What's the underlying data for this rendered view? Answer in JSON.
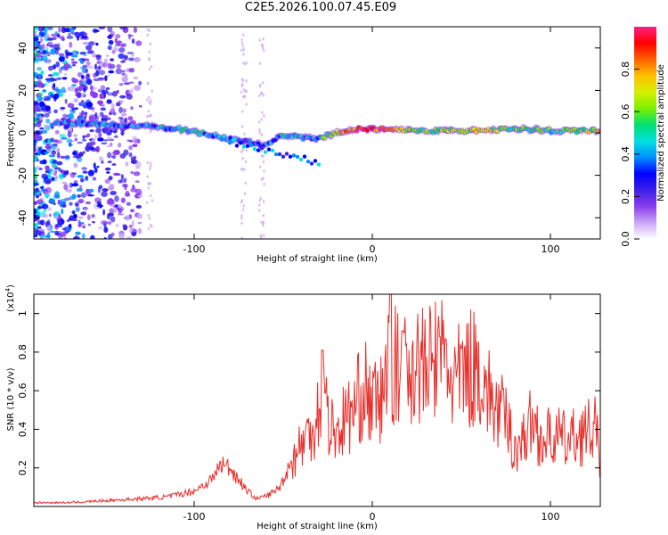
{
  "title": "C2E5.2026.100.07.45.E09",
  "chart_data": [
    {
      "type": "heatmap",
      "xlabel": "Height of straight line (km)",
      "ylabel": "Frequency (Hz)",
      "xlim": [
        -190,
        128
      ],
      "ylim": [
        -50,
        50
      ],
      "xticks": [
        -100,
        0,
        100
      ],
      "yticks": [
        -40,
        -20,
        0,
        20,
        40
      ],
      "colorbar": {
        "label": "Normalized spectral amplitude",
        "range": [
          0,
          1
        ],
        "ticks": [
          "0.0",
          "0.2",
          "0.4",
          "0.6",
          "0.8"
        ],
        "colors": [
          "#ffffff",
          "#c9a6f5",
          "#8b3cf0",
          "#3a20e8",
          "#0000ff",
          "#0090ff",
          "#00e0e0",
          "#00e070",
          "#7cf000",
          "#d8f000",
          "#ffc000",
          "#ff6000",
          "#ff0000",
          "#ff2080"
        ]
      },
      "ridge": {
        "x": [
          -175,
          -150,
          -125,
          -110,
          -95,
          -80,
          -70,
          -60,
          -50,
          -40,
          -32,
          -25,
          -15,
          -5,
          10,
          30,
          60,
          85,
          100,
          128
        ],
        "freq": [
          5,
          4,
          3,
          2,
          0,
          -3,
          -4,
          -6,
          -1,
          -2,
          -3,
          -1,
          1,
          2,
          2,
          1,
          1,
          2,
          1,
          1
        ],
        "amplitude": [
          0.35,
          0.4,
          0.4,
          0.45,
          0.4,
          0.4,
          0.35,
          0.35,
          0.45,
          0.4,
          0.35,
          0.55,
          0.8,
          0.95,
          0.85,
          0.55,
          0.7,
          0.55,
          0.5,
          0.7
        ]
      }
    },
    {
      "type": "line",
      "xlabel": "Height of straight line (km)",
      "ylabel": "SNR (10 * v/v)",
      "y_multiplier": "(x10",
      "y_multiplier_exp": "4",
      "xlim": [
        -190,
        128
      ],
      "ylim": [
        0,
        1.1
      ],
      "xticks": [
        -100,
        0,
        100
      ],
      "yticks": [
        0.2,
        0.4,
        0.6,
        0.8,
        1
      ],
      "series": [
        {
          "name": "SNR",
          "color": "#e8302c",
          "x": [
            -190,
            -170,
            -150,
            -130,
            -115,
            -100,
            -90,
            -85,
            -80,
            -75,
            -70,
            -65,
            -58,
            -52,
            -46,
            -40,
            -35,
            -30,
            -27,
            -24,
            -20,
            -15,
            -10,
            -5,
            0,
            5,
            10,
            15,
            20,
            25,
            30,
            35,
            40,
            45,
            50,
            55,
            60,
            65,
            70,
            75,
            80,
            85,
            90,
            95,
            100,
            105,
            110,
            115,
            120,
            125,
            128
          ],
          "y": [
            0.02,
            0.02,
            0.03,
            0.04,
            0.05,
            0.08,
            0.14,
            0.22,
            0.2,
            0.14,
            0.08,
            0.04,
            0.06,
            0.1,
            0.22,
            0.32,
            0.38,
            0.5,
            0.58,
            0.42,
            0.38,
            0.46,
            0.5,
            0.62,
            0.52,
            0.55,
            0.78,
            0.68,
            0.72,
            0.75,
            0.7,
            0.76,
            0.78,
            0.65,
            0.66,
            0.72,
            0.72,
            0.58,
            0.5,
            0.45,
            0.3,
            0.35,
            0.45,
            0.34,
            0.36,
            0.36,
            0.33,
            0.37,
            0.38,
            0.4,
            0.25
          ],
          "spikes": [
            {
              "x": -28,
              "y": 0.81
            },
            {
              "x": 10,
              "y": 1.1
            },
            {
              "x": 17,
              "y": 0.91
            },
            {
              "x": 38,
              "y": 0.88
            },
            {
              "x": 50,
              "y": 0.82
            }
          ]
        }
      ]
    }
  ]
}
